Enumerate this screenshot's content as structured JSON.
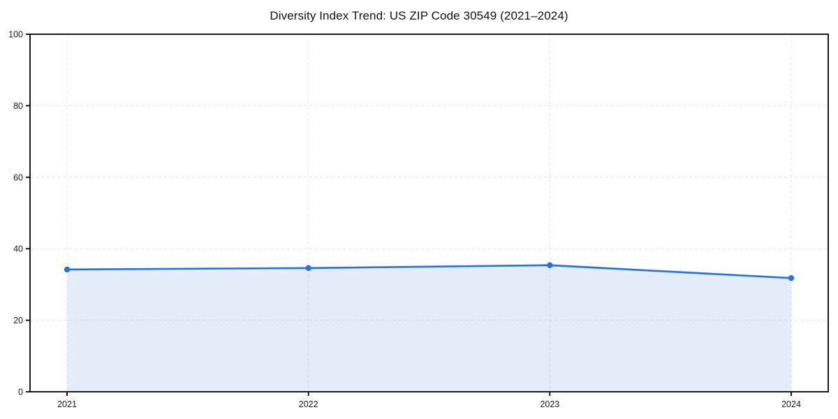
{
  "chart_data": {
    "type": "area",
    "title": "Diversity Index Trend: US ZIP Code 30549 (2021–2024)",
    "categories": [
      "2021",
      "2022",
      "2023",
      "2024"
    ],
    "values": [
      34.2,
      34.6,
      35.4,
      31.8
    ],
    "xlabel": "",
    "ylabel": "",
    "ylim": [
      0,
      100
    ],
    "yticks": [
      0,
      20,
      40,
      60,
      80,
      100
    ],
    "grid": true,
    "legend": false,
    "colors": {
      "line": "#2573e0",
      "marker": "#2573e0",
      "fill_rgba": "rgba(37,115,224,0.12)",
      "grid": "#e4e4e4",
      "axis": "#000000",
      "text": "#1a1a1a"
    }
  }
}
